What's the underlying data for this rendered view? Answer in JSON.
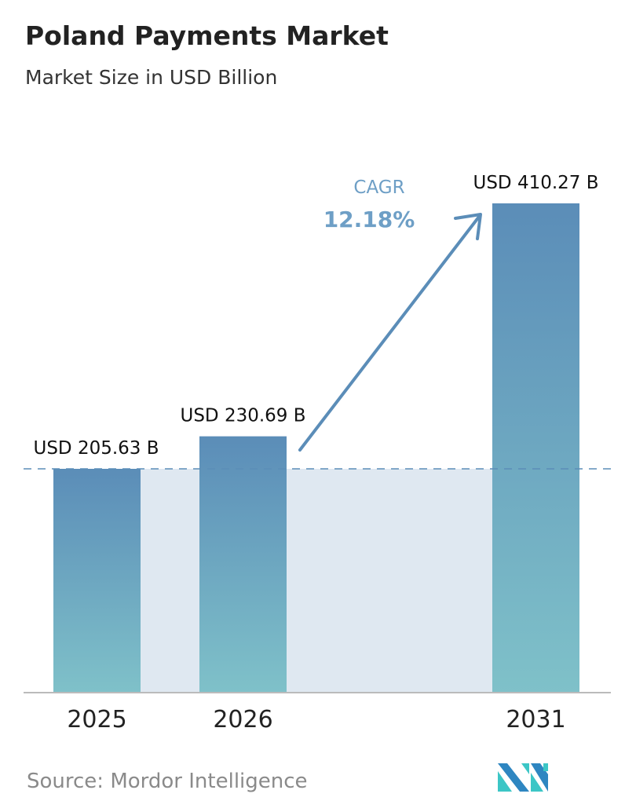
{
  "chart_data": {
    "type": "bar",
    "title": "Poland Payments Market",
    "subtitle": "Market Size in USD Billion",
    "categories": [
      "2025",
      "2026",
      "2031"
    ],
    "values": [
      205.63,
      230.69,
      410.27
    ],
    "data_labels": [
      "USD 205.63 B",
      "USD 230.69 B",
      "USD 410.27 B"
    ],
    "annotation": {
      "label": "CAGR",
      "value": "12.18%"
    },
    "colors": {
      "bar_top": "#5b8db8",
      "bar_bottom": "#7fc1c9",
      "shade": "#dfe8f1",
      "arrow": "#5b8db8",
      "cagr": "#6e9fc6"
    },
    "grid": false
  },
  "source": "Source:  Mordor Intelligence"
}
